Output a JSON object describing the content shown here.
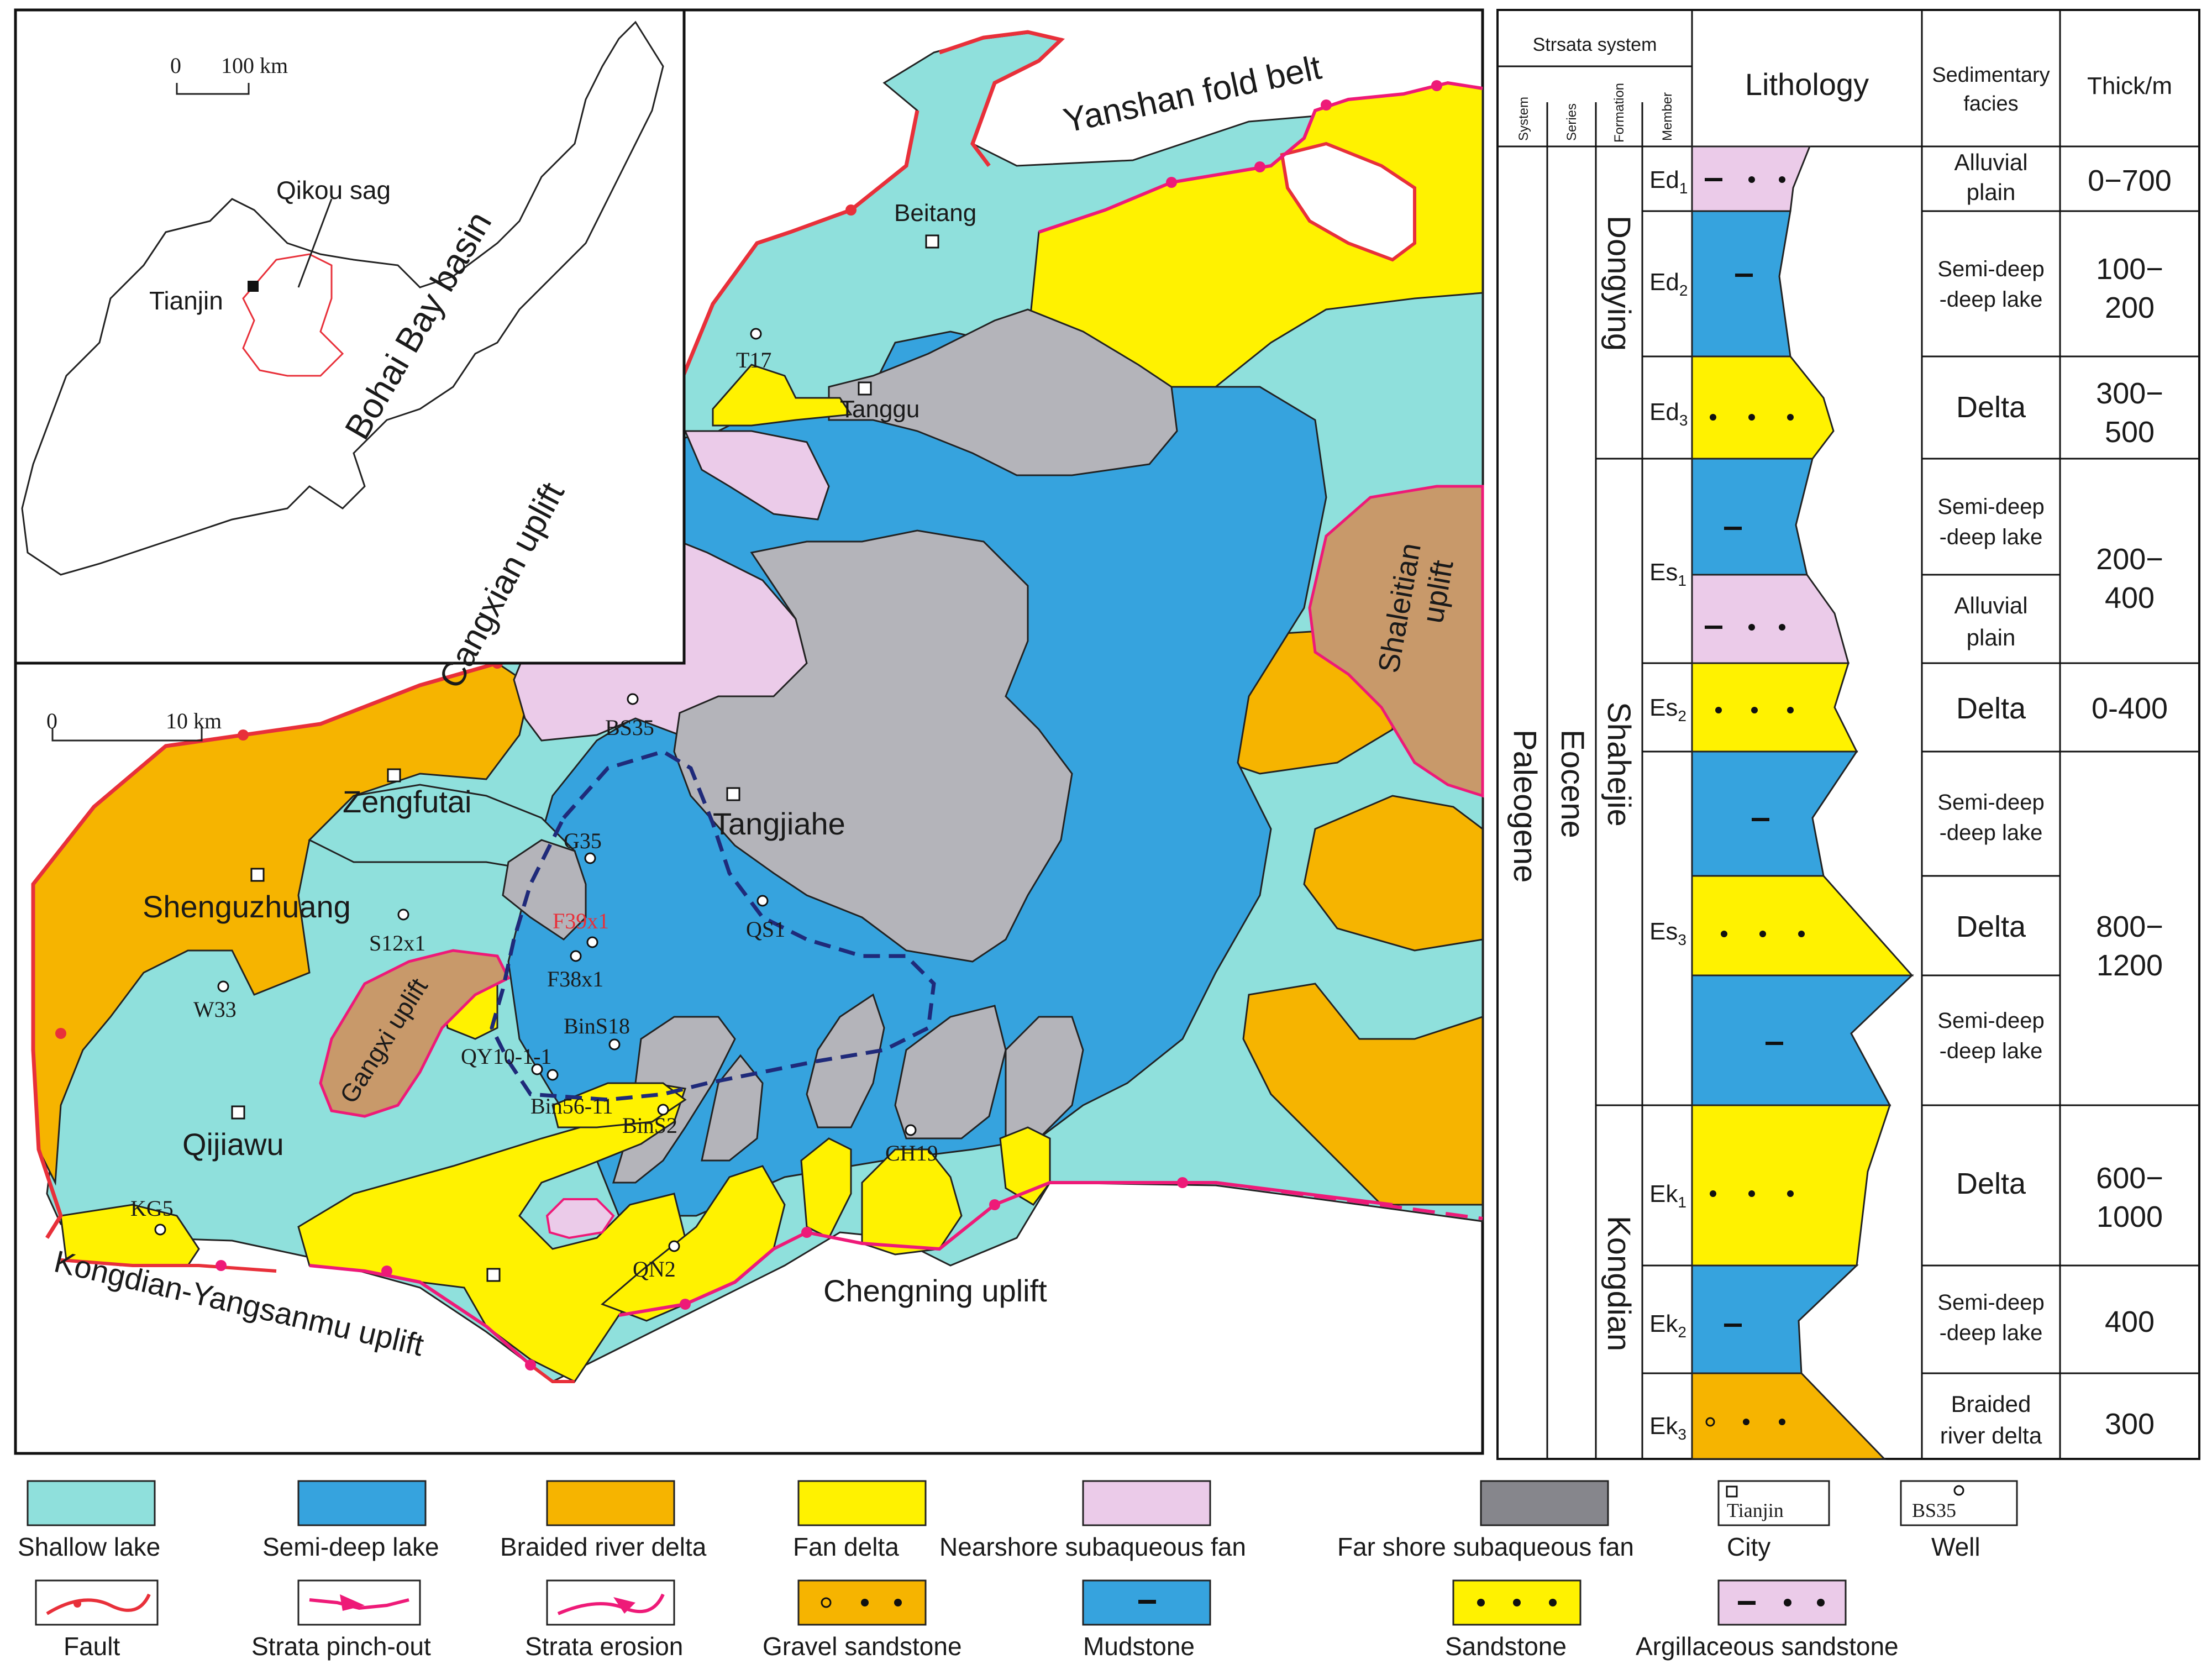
{
  "colors": {
    "shallow_lake": "#8fe0dc",
    "semi_deep_lake": "#36a3de",
    "braided_delta": "#f6b400",
    "fan_delta": "#fff200",
    "nearshore_fan": "#ebcbe9",
    "farshore_fan": "#b4b4ba",
    "uplift": "#c8996a",
    "fault": "#e8303a",
    "pinch": "#ee1a78",
    "boundary_dash": "#1f2a7a"
  },
  "inset": {
    "scale_zero": "0",
    "scale_label": "100 km",
    "sag_label": "Qikou sag",
    "city_label": "Tianjin",
    "basin_label": "Bohai Bay basin"
  },
  "map": {
    "scale_zero": "0",
    "scale_label": "10 km",
    "uplifts": {
      "yanshan": "Yanshan fold belt",
      "cangxian": "Cangxian uplift",
      "shaleitian": "Shaleitian uplift",
      "gangxi": "Gangxi uplift",
      "chengning": "Chengning uplift",
      "kongdian": "Kongdian-Yangsanmu uplift"
    },
    "cities": {
      "beitang": "Beitang",
      "tanggu": "Tanggu",
      "zengfutai": "Zengfutai",
      "shenguzhuang": "Shenguzhuang",
      "tangjiahe": "Tangjiahe",
      "qijiawu": "Qijiawu"
    },
    "wells": {
      "t17": "T17",
      "bs35": "BS35",
      "g35": "G35",
      "qs1": "QS1",
      "s12x1": "S12x1",
      "f39x1": "F39x1",
      "f38x1": "F38x1",
      "w33": "W33",
      "bins18": "BinS18",
      "qy10": "QY10-1-1",
      "bin56": "Bin56-11",
      "bins2": "BinS2",
      "ch19": "CH19",
      "kg5": "KG5",
      "qn2": "QN2"
    }
  },
  "column": {
    "header": {
      "strata_system": "Strsata system",
      "system": "System",
      "series": "Series",
      "formation": "Formation",
      "member": "Member",
      "lithology": "Lithology",
      "facies": "Sedimentary facies",
      "thick": "Thick/m"
    },
    "system": "Paleogene",
    "series": "Eocene",
    "formations": [
      "Dongying",
      "Shahejie",
      "Kongdian"
    ],
    "members": [
      {
        "base": "Ed",
        "sub": "1"
      },
      {
        "base": "Ed",
        "sub": "2"
      },
      {
        "base": "Ed",
        "sub": "3"
      },
      {
        "base": "Es",
        "sub": "1"
      },
      {
        "base": "Es",
        "sub": "2"
      },
      {
        "base": "Es",
        "sub": "3"
      },
      {
        "base": "Ek",
        "sub": "1"
      },
      {
        "base": "Ek",
        "sub": "2"
      },
      {
        "base": "Ek",
        "sub": "3"
      }
    ],
    "facies": [
      [
        "Alluvial",
        "plain"
      ],
      [
        "Semi-deep",
        "-deep lake"
      ],
      [
        "Delta"
      ],
      [
        "Semi-deep",
        "-deep lake"
      ],
      [
        "Alluvial",
        "plain"
      ],
      [
        "Delta"
      ],
      [
        "Semi-deep",
        "-deep lake"
      ],
      [
        "Delta"
      ],
      [
        "Semi-deep",
        "-deep lake"
      ],
      [
        "Delta"
      ],
      [
        "Semi-deep",
        "-deep lake"
      ],
      [
        "Braided",
        "river delta"
      ]
    ],
    "thickness": [
      [
        "0−700"
      ],
      [
        "100−",
        "200"
      ],
      [
        "300−",
        "500"
      ],
      [
        "200−",
        "400"
      ],
      [
        "0-400"
      ],
      [
        "800−",
        "1200"
      ],
      [
        "600−",
        "1000"
      ],
      [
        "400"
      ],
      [
        "300"
      ]
    ]
  },
  "legend": [
    {
      "key": "shallow",
      "label": "Shallow lake"
    },
    {
      "key": "semideep",
      "label": "Semi-deep lake"
    },
    {
      "key": "braided",
      "label": "Braided river delta"
    },
    {
      "key": "fandelta",
      "label": "Fan delta"
    },
    {
      "key": "nearshore",
      "label": "Nearshore subaqueous  fan"
    },
    {
      "key": "farshore",
      "label": "Far shore subaqueous  fan"
    },
    {
      "key": "city",
      "label": "City",
      "sample": "Tianjin"
    },
    {
      "key": "well",
      "label": "Well",
      "sample": "BS35"
    },
    {
      "key": "fault",
      "label": "Fault"
    },
    {
      "key": "pinchout",
      "label": "Strata  pinch-out"
    },
    {
      "key": "erosion",
      "label": "Strata erosion"
    },
    {
      "key": "gravel",
      "label": "Gravel sandstone"
    },
    {
      "key": "mudstone",
      "label": "Mudstone"
    },
    {
      "key": "sandstone",
      "label": "Sandstone"
    },
    {
      "key": "argillaceous",
      "label": "Argillaceous sandstone"
    }
  ]
}
